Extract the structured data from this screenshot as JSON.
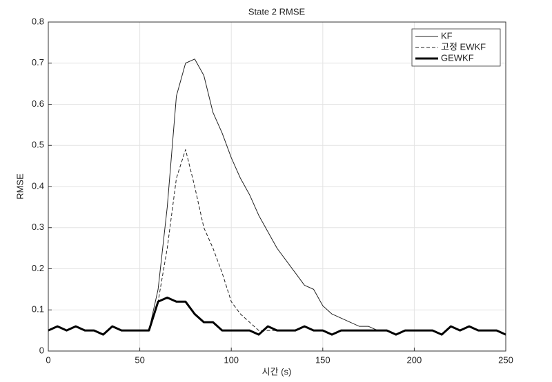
{
  "chart_data": {
    "type": "line",
    "title": "State 2 RMSE",
    "xlabel": "시간 (s)",
    "ylabel": "RMSE",
    "x": [
      0,
      5,
      10,
      15,
      20,
      25,
      30,
      35,
      40,
      45,
      50,
      55,
      60,
      65,
      70,
      75,
      80,
      85,
      90,
      95,
      100,
      105,
      110,
      115,
      120,
      125,
      130,
      135,
      140,
      145,
      150,
      155,
      160,
      165,
      170,
      175,
      180,
      185,
      190,
      195,
      200,
      205,
      210,
      215,
      220,
      225,
      230,
      235,
      240,
      245,
      250
    ],
    "series": [
      {
        "name": "KF",
        "color": "#222222",
        "style": "solid",
        "values": [
          0.05,
          0.06,
          0.05,
          0.06,
          0.05,
          0.05,
          0.04,
          0.06,
          0.05,
          0.05,
          0.05,
          0.05,
          0.15,
          0.35,
          0.62,
          0.7,
          0.71,
          0.67,
          0.58,
          0.53,
          0.47,
          0.42,
          0.38,
          0.33,
          0.29,
          0.25,
          0.22,
          0.19,
          0.16,
          0.15,
          0.11,
          0.09,
          0.08,
          0.07,
          0.06,
          0.06,
          0.05,
          0.05,
          0.04,
          0.05,
          0.05,
          0.05,
          0.05,
          0.04,
          0.06,
          0.05,
          0.06,
          0.05,
          0.05,
          0.05,
          0.04
        ]
      },
      {
        "name": "고정 EWKF",
        "color": "#222222",
        "style": "dashed",
        "values": [
          0.05,
          0.06,
          0.05,
          0.06,
          0.05,
          0.05,
          0.04,
          0.06,
          0.05,
          0.05,
          0.05,
          0.05,
          0.12,
          0.25,
          0.42,
          0.49,
          0.4,
          0.3,
          0.25,
          0.19,
          0.12,
          0.09,
          0.07,
          0.05,
          0.05,
          0.05,
          0.05,
          0.05,
          0.06,
          0.05,
          0.05,
          0.04,
          0.05,
          0.05,
          0.05,
          0.05,
          0.05,
          0.05,
          0.04,
          0.05,
          0.05,
          0.05,
          0.05,
          0.04,
          0.06,
          0.05,
          0.06,
          0.05,
          0.05,
          0.05,
          0.04
        ]
      },
      {
        "name": "GEWKF",
        "color": "#000000",
        "style": "bold",
        "values": [
          0.05,
          0.06,
          0.05,
          0.06,
          0.05,
          0.05,
          0.04,
          0.06,
          0.05,
          0.05,
          0.05,
          0.05,
          0.12,
          0.13,
          0.12,
          0.12,
          0.09,
          0.07,
          0.07,
          0.05,
          0.05,
          0.05,
          0.05,
          0.04,
          0.06,
          0.05,
          0.05,
          0.05,
          0.06,
          0.05,
          0.05,
          0.04,
          0.05,
          0.05,
          0.05,
          0.05,
          0.05,
          0.05,
          0.04,
          0.05,
          0.05,
          0.05,
          0.05,
          0.04,
          0.06,
          0.05,
          0.06,
          0.05,
          0.05,
          0.05,
          0.04
        ]
      }
    ],
    "xlim": [
      0,
      250
    ],
    "xticks": [
      0,
      50,
      100,
      150,
      200,
      250
    ],
    "ylim": [
      0,
      0.8
    ],
    "yticks": [
      0,
      0.1,
      0.2,
      0.3,
      0.4,
      0.5,
      0.6,
      0.7,
      0.8
    ],
    "grid": true,
    "legend": "northeast"
  }
}
